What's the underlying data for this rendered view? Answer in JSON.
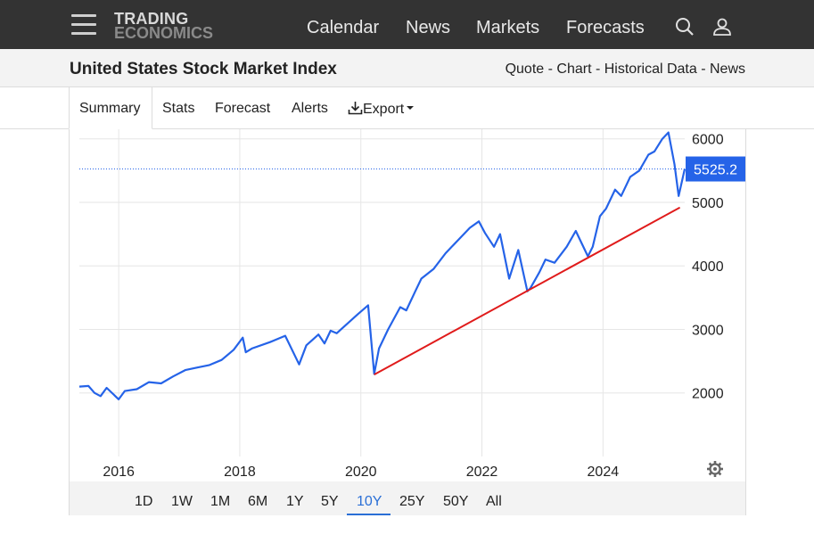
{
  "header": {
    "logo_line1": "TRADING",
    "logo_line2": "ECONOMICS",
    "nav": [
      "Calendar",
      "News",
      "Markets",
      "Forecasts"
    ]
  },
  "subheader": {
    "title": "United States Stock Market Index",
    "links": [
      "Quote",
      "Chart",
      "Historical Data",
      "News"
    ],
    "separator": " - "
  },
  "tabs": [
    "Summary",
    "Stats",
    "Forecast",
    "Alerts",
    "Export"
  ],
  "ranges": [
    "1D",
    "1W",
    "1M",
    "6M",
    "1Y",
    "5Y",
    "10Y",
    "25Y",
    "50Y",
    "All"
  ],
  "active_range": "10Y",
  "colors": {
    "line": "#2563e8",
    "trend": "#e01b1b",
    "topbar": "#333333",
    "accent": "#2a6fd6"
  },
  "chart_data": {
    "type": "line",
    "title": "",
    "xlabel": "",
    "ylabel": "",
    "x_ticks": [
      "2016",
      "2018",
      "2020",
      "2022",
      "2024"
    ],
    "y_ticks": [
      2000,
      3000,
      4000,
      5000,
      6000
    ],
    "xlim": [
      2015.35,
      2025.35
    ],
    "ylim": [
      1000,
      6150
    ],
    "grid": true,
    "last_value": 5525.2,
    "last_label": "5525.2",
    "series": [
      {
        "name": "",
        "x": [
          2015.35,
          2015.5,
          2015.6,
          2015.7,
          2015.8,
          2016.0,
          2016.1,
          2016.3,
          2016.5,
          2016.7,
          2016.9,
          2017.1,
          2017.3,
          2017.5,
          2017.7,
          2017.9,
          2018.05,
          2018.1,
          2018.2,
          2018.5,
          2018.75,
          2018.98,
          2019.1,
          2019.3,
          2019.4,
          2019.5,
          2019.6,
          2019.8,
          2019.95,
          2020.12,
          2020.22,
          2020.3,
          2020.45,
          2020.65,
          2020.75,
          2020.9,
          2021.0,
          2021.2,
          2021.4,
          2021.6,
          2021.8,
          2021.95,
          2022.05,
          2022.2,
          2022.3,
          2022.45,
          2022.6,
          2022.75,
          2022.8,
          2022.95,
          2023.05,
          2023.2,
          2023.4,
          2023.55,
          2023.75,
          2023.83,
          2023.95,
          2024.05,
          2024.2,
          2024.3,
          2024.45,
          2024.6,
          2024.75,
          2024.85,
          2024.98,
          2025.08,
          2025.18,
          2025.25,
          2025.35
        ],
        "values": [
          2100,
          2110,
          2000,
          1950,
          2080,
          1900,
          2030,
          2060,
          2170,
          2150,
          2260,
          2360,
          2400,
          2440,
          2520,
          2680,
          2870,
          2640,
          2700,
          2800,
          2900,
          2450,
          2750,
          2920,
          2780,
          2980,
          2940,
          3110,
          3240,
          3380,
          2300,
          2700,
          3000,
          3350,
          3300,
          3600,
          3800,
          3950,
          4200,
          4400,
          4600,
          4700,
          4520,
          4300,
          4500,
          3800,
          4250,
          3600,
          3650,
          3900,
          4100,
          4050,
          4300,
          4550,
          4150,
          4300,
          4780,
          4900,
          5200,
          5100,
          5400,
          5500,
          5750,
          5800,
          6000,
          6100,
          5600,
          5100,
          5525
        ]
      },
      {
        "name": "",
        "style": "trendline",
        "x": [
          2020.22,
          2025.27
        ],
        "values": [
          2290,
          4920
        ]
      }
    ]
  }
}
